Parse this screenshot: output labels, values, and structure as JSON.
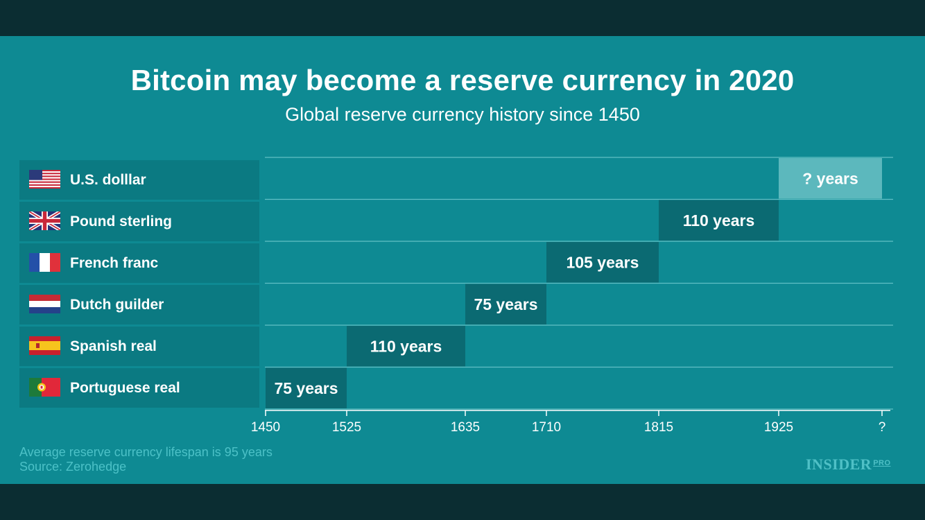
{
  "chart_data": {
    "type": "bar",
    "subtype": "timeline-gantt",
    "title": "Bitcoin may become a reserve currency in 2020",
    "subtitle": "Global reserve currency history since 1450",
    "x_tick_labels": [
      "1450",
      "1525",
      "1635",
      "1710",
      "1815",
      "1925",
      "?"
    ],
    "series": [
      {
        "name": "U.S. dolllar",
        "start": 1925,
        "end": "?",
        "label": "? years",
        "flag": "us-flag"
      },
      {
        "name": "Pound sterling",
        "start": 1815,
        "end": 1925,
        "label": "110 years",
        "flag": "uk-flag"
      },
      {
        "name": "French franc",
        "start": 1710,
        "end": 1815,
        "label": "105 years",
        "flag": "france-flag"
      },
      {
        "name": "Dutch guilder",
        "start": 1635,
        "end": 1710,
        "label": "75 years",
        "flag": "netherlands-flag"
      },
      {
        "name": "Spanish real",
        "start": 1525,
        "end": 1635,
        "label": "110 years",
        "flag": "spain-flag"
      },
      {
        "name": "Portuguese real",
        "start": 1450,
        "end": 1525,
        "label": "75 years",
        "flag": "portugal-flag"
      }
    ]
  },
  "footer": {
    "note": "Average reserve currency lifespan is 95 years",
    "source": "Source: Zerohedge",
    "brand": "INSIDER",
    "brand_suffix": "PRO"
  },
  "colors": {
    "panel": "#0e8a93",
    "bar": "#0b6a72",
    "bar_open": "#5cb8bd",
    "label_bg": "#0b7a82",
    "gridline": "#62c0c5",
    "text": "#ffffff",
    "footnote": "#4cc1c7"
  }
}
